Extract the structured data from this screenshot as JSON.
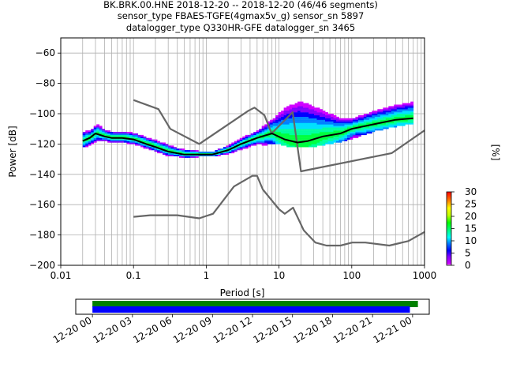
{
  "title": {
    "line1": "BK.BRK.00.HNE   2018-12-20 -- 2018-12-20  (46/46 segments)",
    "line2": "sensor_type FBAES-TGFE(4gmax5v_g) sensor_sn 5897",
    "line3": "datalogger_type Q330HR-GFE datalogger_sn 3465"
  },
  "colorbar": {
    "label": "[%]",
    "ticks": [
      "0",
      "5",
      "10",
      "15",
      "20",
      "25",
      "30"
    ],
    "range": [
      0,
      30
    ]
  },
  "chart_data": [
    {
      "type": "heatmap",
      "subtype": "probabilistic power spectral density",
      "title": "BK.BRK.00.HNE   2018-12-20 -- 2018-12-20  (46/46 segments)",
      "xlabel": "Period [s]",
      "ylabel": "Power [dB]",
      "xscale": "log",
      "xlim": [
        0.01,
        1000
      ],
      "ylim": [
        -200,
        -50
      ],
      "xticks": [
        "0.01",
        "0.1",
        "1",
        "10",
        "100",
        "1000"
      ],
      "yticks": [
        "−200",
        "−180",
        "−160",
        "−140",
        "−120",
        "−100",
        "−80",
        "−60"
      ],
      "grid": true,
      "colorbar_label": "[%]",
      "colorbar_range": [
        0,
        30
      ],
      "series": [
        {
          "role": "noise-model-high",
          "color": "#666666",
          "points": [
            [
              0.1,
              -91
            ],
            [
              0.22,
              -97
            ],
            [
              0.32,
              -110
            ],
            [
              0.8,
              -120
            ],
            [
              3.8,
              -98
            ],
            [
              4.6,
              -96
            ],
            [
              6.3,
              -101
            ],
            [
              7.9,
              -113
            ],
            [
              15.4,
              -99
            ],
            [
              20,
              -138
            ],
            [
              354.8,
              -126
            ],
            [
              1000,
              -111
            ]
          ]
        },
        {
          "role": "noise-model-low",
          "color": "#666666",
          "points": [
            [
              0.1,
              -168
            ],
            [
              0.17,
              -167
            ],
            [
              0.4,
              -167
            ],
            [
              0.8,
              -169
            ],
            [
              1.24,
              -166
            ],
            [
              2.4,
              -148
            ],
            [
              4.3,
              -141
            ],
            [
              5,
              -141
            ],
            [
              6,
              -150
            ],
            [
              10,
              -163
            ],
            [
              12,
              -166
            ],
            [
              15.6,
              -162
            ],
            [
              21.9,
              -177
            ],
            [
              31.6,
              -185
            ],
            [
              45,
              -187
            ],
            [
              70,
              -187
            ],
            [
              101,
              -185
            ],
            [
              154,
              -185
            ],
            [
              328,
              -187
            ],
            [
              600,
              -184
            ],
            [
              1000,
              -178
            ]
          ]
        },
        {
          "role": "mean",
          "color": "#000000",
          "points": [
            [
              0.02,
              -118
            ],
            [
              0.025,
              -116
            ],
            [
              0.03,
              -113
            ],
            [
              0.04,
              -115
            ],
            [
              0.05,
              -116
            ],
            [
              0.07,
              -116
            ],
            [
              0.1,
              -117
            ],
            [
              0.15,
              -120
            ],
            [
              0.2,
              -122
            ],
            [
              0.3,
              -125
            ],
            [
              0.5,
              -127
            ],
            [
              0.8,
              -127
            ],
            [
              1.2,
              -127
            ],
            [
              2,
              -124
            ],
            [
              3,
              -120
            ],
            [
              5,
              -116
            ],
            [
              8,
              -113
            ],
            [
              12,
              -117
            ],
            [
              18,
              -119
            ],
            [
              25,
              -118
            ],
            [
              40,
              -115
            ],
            [
              70,
              -113
            ],
            [
              100,
              -110
            ],
            [
              200,
              -107
            ],
            [
              400,
              -104
            ],
            [
              700,
              -103
            ]
          ]
        }
      ],
      "density_band": [
        {
          "period": 0.02,
          "lo": -122,
          "hi": -112
        },
        {
          "period": 0.025,
          "lo": -120,
          "hi": -111
        },
        {
          "period": 0.03,
          "lo": -118,
          "hi": -107
        },
        {
          "period": 0.04,
          "lo": -119,
          "hi": -111
        },
        {
          "period": 0.05,
          "lo": -120,
          "hi": -112
        },
        {
          "period": 0.07,
          "lo": -120,
          "hi": -113
        },
        {
          "period": 0.1,
          "lo": -121,
          "hi": -113
        },
        {
          "period": 0.15,
          "lo": -124,
          "hi": -116
        },
        {
          "period": 0.2,
          "lo": -126,
          "hi": -118
        },
        {
          "period": 0.3,
          "lo": -129,
          "hi": -122
        },
        {
          "period": 0.5,
          "lo": -129,
          "hi": -124
        },
        {
          "period": 0.8,
          "lo": -128,
          "hi": -125
        },
        {
          "period": 1.2,
          "lo": -128,
          "hi": -125
        },
        {
          "period": 2,
          "lo": -127,
          "hi": -121
        },
        {
          "period": 3,
          "lo": -124,
          "hi": -116
        },
        {
          "period": 5,
          "lo": -121,
          "hi": -111
        },
        {
          "period": 8,
          "lo": -119,
          "hi": -103
        },
        {
          "period": 12,
          "lo": -121,
          "hi": -95
        },
        {
          "period": 18,
          "lo": -122,
          "hi": -91
        },
        {
          "period": 25,
          "lo": -122,
          "hi": -93
        },
        {
          "period": 40,
          "lo": -120,
          "hi": -98
        },
        {
          "period": 70,
          "lo": -118,
          "hi": -103
        },
        {
          "period": 100,
          "lo": -116,
          "hi": -103
        },
        {
          "period": 200,
          "lo": -111,
          "hi": -98
        },
        {
          "period": 400,
          "lo": -108,
          "hi": -94
        },
        {
          "period": 700,
          "lo": -106,
          "hi": -92
        }
      ]
    },
    {
      "type": "timeline",
      "subtype": "data coverage",
      "xticks": [
        "12-20 00",
        "12-20 03",
        "12-20 06",
        "12-20 09",
        "12-20 12",
        "12-20 15",
        "12-20 18",
        "12-20 21",
        "12-21 00"
      ],
      "xlim_hours": [
        -1.25,
        25.25
      ],
      "series": [
        {
          "name": "coverage-processed",
          "color": "#008000",
          "start_hours": 0,
          "end_hours": 24.4
        },
        {
          "name": "coverage-available",
          "color": "#0000ff",
          "start_hours": 0,
          "end_hours": 23.8
        }
      ]
    }
  ]
}
